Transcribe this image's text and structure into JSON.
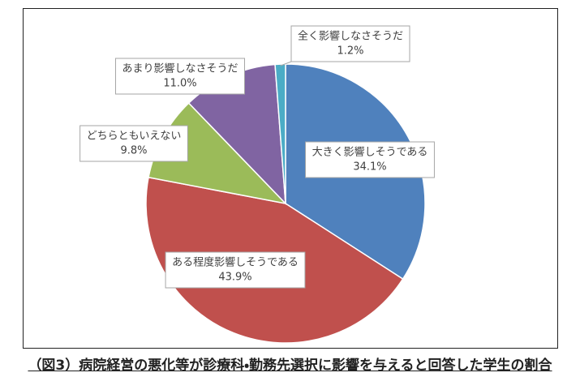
{
  "chart_data": {
    "type": "pie",
    "title": "（図3）病院経営の悪化等が診療科・勤務先選択に影響を与えると回答した学生の割合",
    "categories": [
      "大きく影響しそうである",
      "ある程度影響しそうである",
      "どちらともいえない",
      "あまり影響しなさそうだ",
      "全く影響しなさそうだ"
    ],
    "values": [
      34.1,
      43.9,
      9.8,
      11.0,
      1.2
    ],
    "value_labels": [
      "34.1%",
      "43.9%",
      "9.8%",
      "11.0%",
      "1.2%"
    ],
    "colors": [
      "#4f81bd",
      "#c0504d",
      "#9bbb59",
      "#8064a2",
      "#4bacc6"
    ]
  }
}
